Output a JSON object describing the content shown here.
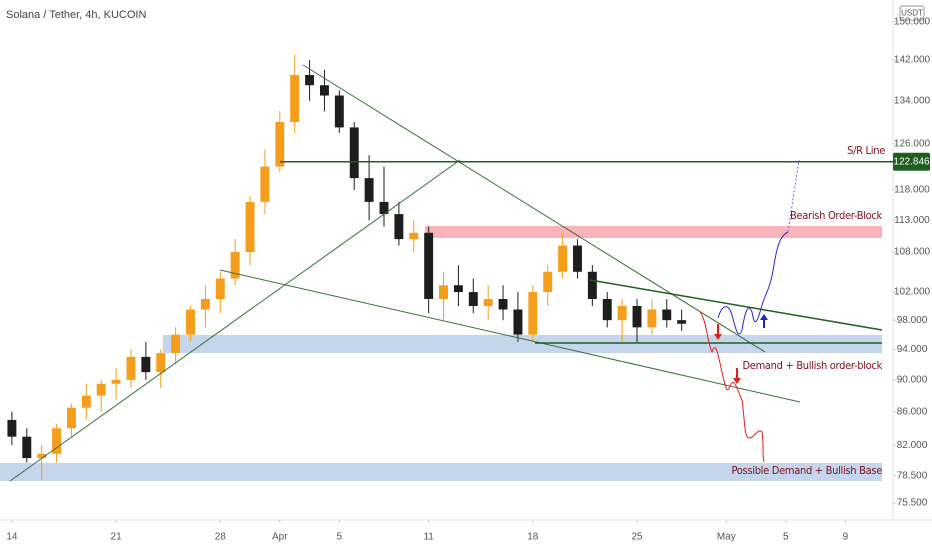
{
  "chart_data": {
    "type": "candlestick",
    "title": "Solana / Tether, 4h, KUCOIN",
    "currency": "USDT",
    "log_scale": true,
    "up_color": "#f59e1b",
    "down_color": "#1e1e1e",
    "ylim": [
      73.7,
      154.7
    ],
    "yticks": [
      {
        "value": 75.5,
        "label": "75.500"
      },
      {
        "value": 78.5,
        "label": "78.500"
      },
      {
        "value": 82,
        "label": "82.000"
      },
      {
        "value": 86,
        "label": "86.000"
      },
      {
        "value": 90,
        "label": "90.000"
      },
      {
        "value": 94,
        "label": "94.000"
      },
      {
        "value": 98,
        "label": "98.000"
      },
      {
        "value": 102,
        "label": "102.000"
      },
      {
        "value": 108,
        "label": "108.000"
      },
      {
        "value": 113,
        "label": "113.000"
      },
      {
        "value": 118,
        "label": "118.000"
      },
      {
        "value": 126,
        "label": "126.000"
      },
      {
        "value": 134,
        "label": "134.000"
      },
      {
        "value": 142,
        "label": "142.000"
      },
      {
        "value": 150,
        "label": "150.000"
      }
    ],
    "xlim": [
      -0.8,
      59.2
    ],
    "xticks": [
      {
        "value": 0,
        "label": "14"
      },
      {
        "value": 7,
        "label": "21"
      },
      {
        "value": 14,
        "label": "28"
      },
      {
        "value": 18,
        "label": "Apr"
      },
      {
        "value": 22,
        "label": "5"
      },
      {
        "value": 28,
        "label": "11"
      },
      {
        "value": 35,
        "label": "18"
      },
      {
        "value": 42,
        "label": "25"
      },
      {
        "value": 48,
        "label": "May"
      },
      {
        "value": 52,
        "label": "5"
      },
      {
        "value": 56,
        "label": "9"
      }
    ],
    "x": [
      0,
      1,
      2,
      3,
      4,
      5,
      6,
      7,
      8,
      9,
      10,
      11,
      12,
      13,
      14,
      15,
      16,
      17,
      18,
      19,
      20,
      21,
      22,
      23,
      24,
      25,
      26,
      27,
      28,
      29,
      30,
      31,
      32,
      33,
      34,
      35,
      36,
      37,
      38,
      39,
      40,
      41,
      42,
      43,
      44,
      45
    ],
    "open": [
      85,
      83,
      80.5,
      81,
      84,
      86.5,
      88,
      89.5,
      90,
      93,
      91,
      93.5,
      96,
      99.5,
      101,
      104,
      108,
      116,
      122,
      130,
      139,
      137,
      135,
      129,
      120,
      116,
      114,
      110,
      111,
      101,
      103,
      102,
      100,
      101,
      99.5,
      96,
      102,
      105,
      109,
      105,
      101,
      98,
      100,
      97,
      99.5,
      98
    ],
    "high": [
      86,
      84,
      82,
      84.5,
      87,
      89.5,
      90,
      91.5,
      94,
      95,
      94,
      97,
      100,
      103,
      105,
      110,
      117,
      125,
      132,
      143,
      142,
      140,
      136,
      130,
      124,
      122,
      116,
      113,
      112,
      105,
      106,
      104,
      103,
      103,
      102,
      103,
      106,
      111,
      110,
      106,
      102,
      101,
      101,
      101,
      101,
      99.5
    ],
    "low": [
      82,
      80,
      78,
      80,
      83,
      85,
      86,
      87.5,
      89,
      90,
      89,
      92,
      95,
      97,
      99,
      103,
      106,
      114,
      121,
      128,
      134,
      132,
      128,
      118,
      113,
      112,
      109,
      108,
      99,
      98,
      100,
      99,
      98,
      98,
      95,
      95,
      100,
      104,
      104,
      100,
      97,
      95,
      95,
      96,
      97,
      96.5
    ],
    "close": [
      83,
      80.5,
      81,
      84,
      86.5,
      88,
      89.5,
      90,
      93,
      91,
      93.5,
      96,
      99.5,
      101,
      104,
      108,
      116,
      122,
      130,
      139,
      137,
      135,
      129,
      120,
      116,
      114,
      110,
      111,
      101,
      103,
      102,
      100,
      101,
      99.5,
      96,
      102,
      105,
      109,
      105,
      101,
      98,
      100,
      97,
      99.5,
      98,
      97.5
    ],
    "sr_level": 122.846,
    "annotations": [
      "S/R Line",
      "Bearish Order-Block",
      "Demand + Bullish order-block",
      "Possible Demand + Bullish Base"
    ]
  }
}
